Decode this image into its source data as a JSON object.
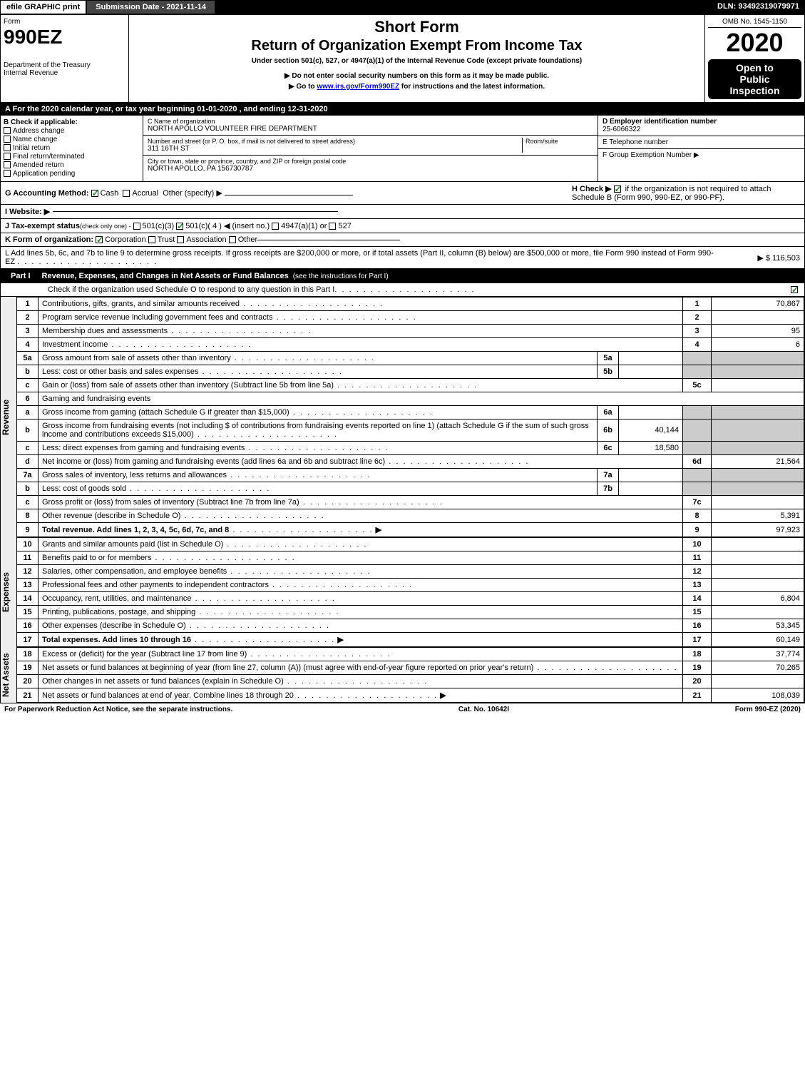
{
  "topbar": {
    "efile": "efile GRAPHIC print",
    "submission": "Submission Date - 2021-11-14",
    "dln": "DLN: 93492319079971"
  },
  "header": {
    "form_word": "Form",
    "form_number": "990EZ",
    "dept": "Department of the Treasury",
    "irs": "Internal Revenue",
    "title1": "Short Form",
    "title2": "Return of Organization Exempt From Income Tax",
    "subtitle": "Under section 501(c), 527, or 4947(a)(1) of the Internal Revenue Code (except private foundations)",
    "note1": "▶ Do not enter social security numbers on this form as it may be made public.",
    "note2_pre": "▶ Go to ",
    "note2_link": "www.irs.gov/Form990EZ",
    "note2_post": " for instructions and the latest information.",
    "omb": "OMB No. 1545-1150",
    "year": "2020",
    "open1": "Open to",
    "open2": "Public",
    "open3": "Inspection"
  },
  "period": "A For the 2020 calendar year, or tax year beginning 01-01-2020 , and ending 12-31-2020",
  "section_b": {
    "label": "B  Check if applicable:",
    "opts": [
      "Address change",
      "Name change",
      "Initial return",
      "Final return/terminated",
      "Amended return",
      "Application pending"
    ]
  },
  "section_c": {
    "name_label": "C Name of organization",
    "name": "NORTH APOLLO VOLUNTEER FIRE DEPARTMENT",
    "addr_label": "Number and street (or P. O. box, if mail is not delivered to street address)",
    "room_label": "Room/suite",
    "addr": "311 16TH ST",
    "city_label": "City or town, state or province, country, and ZIP or foreign postal code",
    "city": "NORTH APOLLO, PA  156730787"
  },
  "section_de": {
    "d_label": "D Employer identification number",
    "d_value": "25-6066322",
    "e_label": "E Telephone number",
    "f_label": "F Group Exemption Number  ▶"
  },
  "line_g": {
    "label": "G Accounting Method:",
    "cash": "Cash",
    "accrual": "Accrual",
    "other": "Other (specify) ▶"
  },
  "line_h": {
    "label": "H  Check ▶",
    "text": "if the organization is not required to attach Schedule B (Form 990, 990-EZ, or 990-PF)."
  },
  "line_i": {
    "label": "I Website: ▶"
  },
  "line_j": {
    "label": "J Tax-exempt status",
    "note": "(check only one) -",
    "opts": [
      "501(c)(3)",
      "501(c)( 4 ) ◀ (insert no.)",
      "4947(a)(1) or",
      "527"
    ]
  },
  "line_k": {
    "label": "K Form of organization:",
    "opts": [
      "Corporation",
      "Trust",
      "Association",
      "Other"
    ]
  },
  "line_l": {
    "text": "L Add lines 5b, 6c, and 7b to line 9 to determine gross receipts. If gross receipts are $200,000 or more, or if total assets (Part II, column (B) below) are $500,000 or more, file Form 990 instead of Form 990-EZ",
    "amount": "▶ $ 116,503"
  },
  "part1": {
    "label": "Part I",
    "title": "Revenue, Expenses, and Changes in Net Assets or Fund Balances",
    "note": "(see the instructions for Part I)",
    "check_note": "Check if the organization used Schedule O to respond to any question in this Part I"
  },
  "revenue_rows": [
    {
      "n": "1",
      "desc": "Contributions, gifts, grants, and similar amounts received",
      "ln": "1",
      "amt": "70,867"
    },
    {
      "n": "2",
      "desc": "Program service revenue including government fees and contracts",
      "ln": "2",
      "amt": ""
    },
    {
      "n": "3",
      "desc": "Membership dues and assessments",
      "ln": "3",
      "amt": "95"
    },
    {
      "n": "4",
      "desc": "Investment income",
      "ln": "4",
      "amt": "6"
    },
    {
      "n": "5a",
      "desc": "Gross amount from sale of assets other than inventory",
      "sub": "5a",
      "subamt": "",
      "shaded": true
    },
    {
      "n": "b",
      "desc": "Less: cost or other basis and sales expenses",
      "sub": "5b",
      "subamt": "",
      "shaded": true
    },
    {
      "n": "c",
      "desc": "Gain or (loss) from sale of assets other than inventory (Subtract line 5b from line 5a)",
      "ln": "5c",
      "amt": ""
    },
    {
      "n": "6",
      "desc": "Gaming and fundraising events",
      "header": true
    },
    {
      "n": "a",
      "desc": "Gross income from gaming (attach Schedule G if greater than $15,000)",
      "sub": "6a",
      "subamt": "",
      "shaded": true
    },
    {
      "n": "b",
      "desc": "Gross income from fundraising events (not including $                    of contributions from fundraising events reported on line 1) (attach Schedule G if the sum of such gross income and contributions exceeds $15,000)",
      "sub": "6b",
      "subamt": "40,144",
      "shaded": true
    },
    {
      "n": "c",
      "desc": "Less: direct expenses from gaming and fundraising events",
      "sub": "6c",
      "subamt": "18,580",
      "shaded": true
    },
    {
      "n": "d",
      "desc": "Net income or (loss) from gaming and fundraising events (add lines 6a and 6b and subtract line 6c)",
      "ln": "6d",
      "amt": "21,564"
    },
    {
      "n": "7a",
      "desc": "Gross sales of inventory, less returns and allowances",
      "sub": "7a",
      "subamt": "",
      "shaded": true
    },
    {
      "n": "b",
      "desc": "Less: cost of goods sold",
      "sub": "7b",
      "subamt": "",
      "shaded": true
    },
    {
      "n": "c",
      "desc": "Gross profit or (loss) from sales of inventory (Subtract line 7b from line 7a)",
      "ln": "7c",
      "amt": ""
    },
    {
      "n": "8",
      "desc": "Other revenue (describe in Schedule O)",
      "ln": "8",
      "amt": "5,391"
    },
    {
      "n": "9",
      "desc": "Total revenue. Add lines 1, 2, 3, 4, 5c, 6d, 7c, and 8",
      "ln": "9",
      "amt": "97,923",
      "bold": true,
      "arrow": true
    }
  ],
  "expense_rows": [
    {
      "n": "10",
      "desc": "Grants and similar amounts paid (list in Schedule O)",
      "ln": "10",
      "amt": ""
    },
    {
      "n": "11",
      "desc": "Benefits paid to or for members",
      "ln": "11",
      "amt": ""
    },
    {
      "n": "12",
      "desc": "Salaries, other compensation, and employee benefits",
      "ln": "12",
      "amt": ""
    },
    {
      "n": "13",
      "desc": "Professional fees and other payments to independent contractors",
      "ln": "13",
      "amt": ""
    },
    {
      "n": "14",
      "desc": "Occupancy, rent, utilities, and maintenance",
      "ln": "14",
      "amt": "6,804"
    },
    {
      "n": "15",
      "desc": "Printing, publications, postage, and shipping",
      "ln": "15",
      "amt": ""
    },
    {
      "n": "16",
      "desc": "Other expenses (describe in Schedule O)",
      "ln": "16",
      "amt": "53,345"
    },
    {
      "n": "17",
      "desc": "Total expenses. Add lines 10 through 16",
      "ln": "17",
      "amt": "60,149",
      "bold": true,
      "arrow": true
    }
  ],
  "netassets_rows": [
    {
      "n": "18",
      "desc": "Excess or (deficit) for the year (Subtract line 17 from line 9)",
      "ln": "18",
      "amt": "37,774"
    },
    {
      "n": "19",
      "desc": "Net assets or fund balances at beginning of year (from line 27, column (A)) (must agree with end-of-year figure reported on prior year's return)",
      "ln": "19",
      "amt": "70,265"
    },
    {
      "n": "20",
      "desc": "Other changes in net assets or fund balances (explain in Schedule O)",
      "ln": "20",
      "amt": ""
    },
    {
      "n": "21",
      "desc": "Net assets or fund balances at end of year. Combine lines 18 through 20",
      "ln": "21",
      "amt": "108,039",
      "arrow": true
    }
  ],
  "side_labels": {
    "revenue": "Revenue",
    "expenses": "Expenses",
    "netassets": "Net Assets"
  },
  "footer": {
    "left": "For Paperwork Reduction Act Notice, see the separate instructions.",
    "mid": "Cat. No. 10642I",
    "right": "Form 990-EZ (2020)"
  },
  "colors": {
    "black": "#000000",
    "white": "#ffffff",
    "shaded": "#cccccc",
    "link": "#0000cc",
    "check_green": "#2a7a2a",
    "topbar_mid": "#444444"
  }
}
